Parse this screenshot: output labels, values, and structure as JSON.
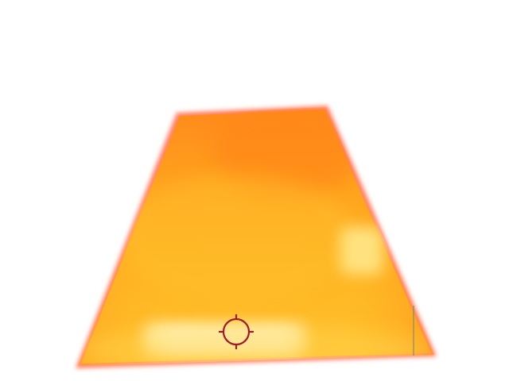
{
  "thermal_view": {
    "palette": {
      "background": "#ffffff",
      "edge_glow": "#ff5a3c",
      "hot_top": "#ff8c1a",
      "warm_mid": "#ffb020",
      "warm_low": "#ffc830",
      "hotspot": "#fff8c8",
      "crosshair": "#a01a28",
      "edge_line": "#8a8a6a"
    },
    "crosshair": {
      "icon": "crosshair-icon"
    }
  }
}
